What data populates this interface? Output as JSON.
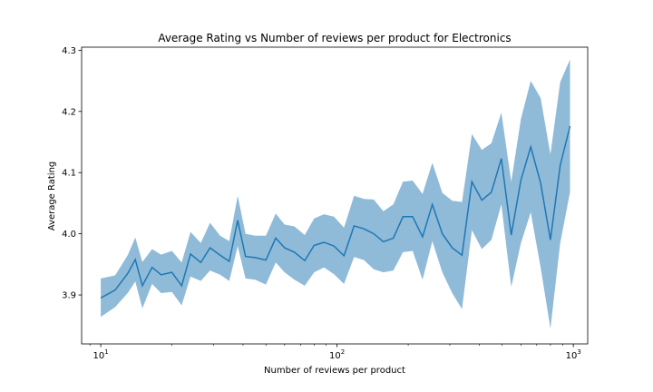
{
  "chart_data": {
    "type": "line",
    "title": "Average Rating vs Number of reviews per product for Electronics",
    "xlabel": "Number of reviews per product",
    "ylabel": "Average Rating",
    "xscale": "log",
    "xlim": [
      8.3,
      1150
    ],
    "ylim": [
      3.82,
      4.305
    ],
    "yticks": [
      "3.9",
      "4.0",
      "4.1",
      "4.2",
      "4.3"
    ],
    "xticks": [
      {
        "base": "10",
        "exp": "1",
        "value": 10
      },
      {
        "base": "10",
        "exp": "2",
        "value": 100
      },
      {
        "base": "10",
        "exp": "3",
        "value": 1000
      }
    ],
    "grid": false,
    "line_color": "#1f77b4",
    "band_color": "#1f77b4",
    "series": [
      {
        "x": [
          10,
          11.5,
          13,
          14,
          15,
          16.5,
          18,
          20,
          22,
          24,
          26.5,
          29,
          32,
          35,
          38,
          41,
          45,
          50,
          55,
          60,
          66,
          73,
          80,
          88,
          97,
          107,
          118,
          130,
          143,
          157,
          173,
          190,
          209,
          230,
          253,
          279,
          307,
          338,
          372,
          410,
          450,
          496,
          546,
          600,
          660,
          727,
          800,
          880,
          968
        ],
        "y": [
          3.895,
          3.908,
          3.935,
          3.958,
          3.915,
          3.945,
          3.933,
          3.937,
          3.915,
          3.967,
          3.953,
          3.977,
          3.965,
          3.955,
          4.022,
          3.963,
          3.961,
          3.957,
          3.993,
          3.977,
          3.97,
          3.956,
          3.981,
          3.986,
          3.98,
          3.964,
          4.013,
          4.008,
          4.0,
          3.987,
          3.993,
          4.028,
          4.028,
          3.995,
          4.048,
          4.0,
          3.977,
          3.965,
          4.085,
          4.055,
          4.068,
          4.123,
          3.998,
          4.088,
          4.142,
          4.083,
          3.99,
          4.112,
          4.176
        ],
        "lower": [
          3.864,
          3.88,
          3.903,
          3.922,
          3.878,
          3.918,
          3.903,
          3.905,
          3.883,
          3.93,
          3.923,
          3.94,
          3.933,
          3.923,
          3.98,
          3.927,
          3.925,
          3.917,
          3.953,
          3.937,
          3.925,
          3.915,
          3.937,
          3.945,
          3.934,
          3.918,
          3.962,
          3.957,
          3.942,
          3.937,
          3.94,
          3.97,
          3.972,
          3.925,
          3.988,
          3.937,
          3.903,
          3.877,
          4.006,
          3.975,
          3.99,
          4.048,
          3.913,
          3.985,
          4.035,
          3.945,
          3.845,
          3.985,
          4.068
        ],
        "upper": [
          3.927,
          3.932,
          3.965,
          3.994,
          3.954,
          3.975,
          3.966,
          3.972,
          3.953,
          4.003,
          3.985,
          4.018,
          3.997,
          3.988,
          4.062,
          4.0,
          3.997,
          3.997,
          4.033,
          4.015,
          4.012,
          3.998,
          4.025,
          4.032,
          4.028,
          4.01,
          4.062,
          4.057,
          4.056,
          4.037,
          4.048,
          4.085,
          4.087,
          4.065,
          4.116,
          4.067,
          4.054,
          4.052,
          4.163,
          4.137,
          4.148,
          4.198,
          4.085,
          4.188,
          4.25,
          4.222,
          4.13,
          4.248,
          4.285
        ]
      }
    ]
  }
}
